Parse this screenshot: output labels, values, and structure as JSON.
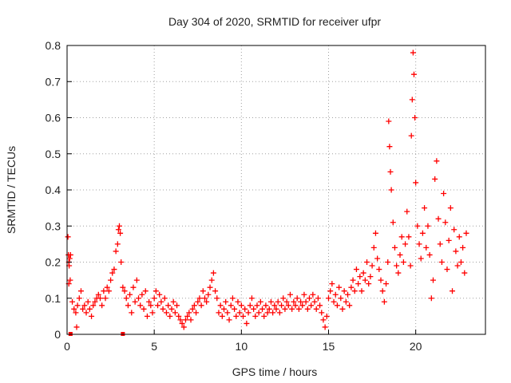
{
  "chart_data": {
    "type": "scatter",
    "title": "Day 304 of 2020, SRMTID for receiver ufpr",
    "xlabel": "GPS time / hours",
    "ylabel": "SRMTID / TECUs",
    "xlim": [
      0,
      24
    ],
    "ylim": [
      0,
      0.8
    ],
    "xticks": [
      0,
      5,
      10,
      15,
      20
    ],
    "yticks": [
      0,
      0.1,
      0.2,
      0.3,
      0.4,
      0.5,
      0.6,
      0.7,
      0.8
    ],
    "grid": true,
    "marker": "+",
    "color": "#ff0000",
    "series": [
      {
        "name": "ufpr",
        "points": [
          [
            0.05,
            0.27
          ],
          [
            0.08,
            0.22
          ],
          [
            0.1,
            0.2
          ],
          [
            0.12,
            0.19
          ],
          [
            0.15,
            0.21
          ],
          [
            0.18,
            0.15
          ],
          [
            0.2,
            0.22
          ],
          [
            0.1,
            0.14
          ],
          [
            0.3,
            0.09
          ],
          [
            0.4,
            0.07
          ],
          [
            0.5,
            0.06
          ],
          [
            0.55,
            0.02
          ],
          [
            0.6,
            0.08
          ],
          [
            0.7,
            0.1
          ],
          [
            0.8,
            0.12
          ],
          [
            0.9,
            0.07
          ],
          [
            1.0,
            0.08
          ],
          [
            1.1,
            0.06
          ],
          [
            1.2,
            0.09
          ],
          [
            1.3,
            0.07
          ],
          [
            1.4,
            0.05
          ],
          [
            1.5,
            0.08
          ],
          [
            1.6,
            0.09
          ],
          [
            1.7,
            0.1
          ],
          [
            1.8,
            0.11
          ],
          [
            1.9,
            0.1
          ],
          [
            2.0,
            0.08
          ],
          [
            2.1,
            0.12
          ],
          [
            2.2,
            0.1
          ],
          [
            2.3,
            0.13
          ],
          [
            2.4,
            0.12
          ],
          [
            2.5,
            0.15
          ],
          [
            2.6,
            0.17
          ],
          [
            2.7,
            0.18
          ],
          [
            2.8,
            0.23
          ],
          [
            2.9,
            0.25
          ],
          [
            2.95,
            0.29
          ],
          [
            3.0,
            0.3
          ],
          [
            3.05,
            0.28
          ],
          [
            3.1,
            0.2
          ],
          [
            3.2,
            0.13
          ],
          [
            3.3,
            0.12
          ],
          [
            3.4,
            0.1
          ],
          [
            3.5,
            0.08
          ],
          [
            3.6,
            0.11
          ],
          [
            3.7,
            0.06
          ],
          [
            3.8,
            0.13
          ],
          [
            3.9,
            0.09
          ],
          [
            4.0,
            0.15
          ],
          [
            4.1,
            0.1
          ],
          [
            4.2,
            0.08
          ],
          [
            4.3,
            0.11
          ],
          [
            4.4,
            0.07
          ],
          [
            4.5,
            0.12
          ],
          [
            4.6,
            0.05
          ],
          [
            4.7,
            0.09
          ],
          [
            4.8,
            0.08
          ],
          [
            4.9,
            0.06
          ],
          [
            5.0,
            0.1
          ],
          [
            5.1,
            0.12
          ],
          [
            5.2,
            0.08
          ],
          [
            5.3,
            0.11
          ],
          [
            5.4,
            0.09
          ],
          [
            5.5,
            0.07
          ],
          [
            5.6,
            0.1
          ],
          [
            5.7,
            0.06
          ],
          [
            5.8,
            0.08
          ],
          [
            5.9,
            0.05
          ],
          [
            6.0,
            0.07
          ],
          [
            6.1,
            0.09
          ],
          [
            6.2,
            0.06
          ],
          [
            6.3,
            0.08
          ],
          [
            6.4,
            0.05
          ],
          [
            6.5,
            0.04
          ],
          [
            6.6,
            0.03
          ],
          [
            6.7,
            0.02
          ],
          [
            6.8,
            0.04
          ],
          [
            6.9,
            0.05
          ],
          [
            7.0,
            0.06
          ],
          [
            7.1,
            0.04
          ],
          [
            7.2,
            0.07
          ],
          [
            7.3,
            0.08
          ],
          [
            7.4,
            0.06
          ],
          [
            7.5,
            0.09
          ],
          [
            7.6,
            0.1
          ],
          [
            7.7,
            0.08
          ],
          [
            7.8,
            0.12
          ],
          [
            7.9,
            0.1
          ],
          [
            8.0,
            0.09
          ],
          [
            8.1,
            0.11
          ],
          [
            8.2,
            0.13
          ],
          [
            8.3,
            0.15
          ],
          [
            8.4,
            0.17
          ],
          [
            8.5,
            0.12
          ],
          [
            8.6,
            0.1
          ],
          [
            8.7,
            0.06
          ],
          [
            8.8,
            0.08
          ],
          [
            8.9,
            0.05
          ],
          [
            9.0,
            0.07
          ],
          [
            9.1,
            0.09
          ],
          [
            9.2,
            0.06
          ],
          [
            9.3,
            0.04
          ],
          [
            9.4,
            0.08
          ],
          [
            9.5,
            0.1
          ],
          [
            9.6,
            0.07
          ],
          [
            9.7,
            0.05
          ],
          [
            9.8,
            0.09
          ],
          [
            9.9,
            0.06
          ],
          [
            10.0,
            0.08
          ],
          [
            10.1,
            0.05
          ],
          [
            10.2,
            0.07
          ],
          [
            10.3,
            0.03
          ],
          [
            10.4,
            0.06
          ],
          [
            10.5,
            0.08
          ],
          [
            10.6,
            0.1
          ],
          [
            10.7,
            0.07
          ],
          [
            10.8,
            0.05
          ],
          [
            10.9,
            0.08
          ],
          [
            11.0,
            0.06
          ],
          [
            11.1,
            0.09
          ],
          [
            11.2,
            0.07
          ],
          [
            11.3,
            0.05
          ],
          [
            11.4,
            0.08
          ],
          [
            11.5,
            0.06
          ],
          [
            11.6,
            0.07
          ],
          [
            11.7,
            0.09
          ],
          [
            11.8,
            0.06
          ],
          [
            11.9,
            0.08
          ],
          [
            12.0,
            0.07
          ],
          [
            12.1,
            0.09
          ],
          [
            12.2,
            0.06
          ],
          [
            12.3,
            0.08
          ],
          [
            12.4,
            0.1
          ],
          [
            12.5,
            0.07
          ],
          [
            12.6,
            0.09
          ],
          [
            12.7,
            0.08
          ],
          [
            12.8,
            0.11
          ],
          [
            12.9,
            0.07
          ],
          [
            13.0,
            0.09
          ],
          [
            13.1,
            0.08
          ],
          [
            13.2,
            0.1
          ],
          [
            13.3,
            0.07
          ],
          [
            13.4,
            0.09
          ],
          [
            13.5,
            0.08
          ],
          [
            13.6,
            0.11
          ],
          [
            13.7,
            0.09
          ],
          [
            13.8,
            0.07
          ],
          [
            13.9,
            0.1
          ],
          [
            14.0,
            0.08
          ],
          [
            14.1,
            0.11
          ],
          [
            14.2,
            0.09
          ],
          [
            14.3,
            0.07
          ],
          [
            14.4,
            0.1
          ],
          [
            14.5,
            0.08
          ],
          [
            14.6,
            0.06
          ],
          [
            14.7,
            0.04
          ],
          [
            14.8,
            0.02
          ],
          [
            14.9,
            0.05
          ],
          [
            15.0,
            0.1
          ],
          [
            15.1,
            0.12
          ],
          [
            15.2,
            0.14
          ],
          [
            15.3,
            0.09
          ],
          [
            15.4,
            0.11
          ],
          [
            15.5,
            0.08
          ],
          [
            15.6,
            0.13
          ],
          [
            15.7,
            0.1
          ],
          [
            15.8,
            0.07
          ],
          [
            15.9,
            0.12
          ],
          [
            16.0,
            0.09
          ],
          [
            16.1,
            0.11
          ],
          [
            16.2,
            0.08
          ],
          [
            16.3,
            0.13
          ],
          [
            16.4,
            0.15
          ],
          [
            16.5,
            0.12
          ],
          [
            16.6,
            0.18
          ],
          [
            16.7,
            0.14
          ],
          [
            16.8,
            0.16
          ],
          [
            16.9,
            0.12
          ],
          [
            17.0,
            0.17
          ],
          [
            17.1,
            0.15
          ],
          [
            17.2,
            0.2
          ],
          [
            17.3,
            0.14
          ],
          [
            17.4,
            0.16
          ],
          [
            17.5,
            0.19
          ],
          [
            17.6,
            0.24
          ],
          [
            17.7,
            0.28
          ],
          [
            17.8,
            0.21
          ],
          [
            17.9,
            0.18
          ],
          [
            18.0,
            0.15
          ],
          [
            18.1,
            0.12
          ],
          [
            18.2,
            0.09
          ],
          [
            18.3,
            0.14
          ],
          [
            18.4,
            0.2
          ],
          [
            18.45,
            0.59
          ],
          [
            18.5,
            0.52
          ],
          [
            18.55,
            0.45
          ],
          [
            18.6,
            0.4
          ],
          [
            18.7,
            0.31
          ],
          [
            18.8,
            0.24
          ],
          [
            18.9,
            0.19
          ],
          [
            19.0,
            0.17
          ],
          [
            19.1,
            0.22
          ],
          [
            19.2,
            0.27
          ],
          [
            19.3,
            0.2
          ],
          [
            19.4,
            0.25
          ],
          [
            19.5,
            0.34
          ],
          [
            19.6,
            0.27
          ],
          [
            19.7,
            0.19
          ],
          [
            19.75,
            0.55
          ],
          [
            19.8,
            0.65
          ],
          [
            19.85,
            0.78
          ],
          [
            19.9,
            0.72
          ],
          [
            19.95,
            0.6
          ],
          [
            20.0,
            0.42
          ],
          [
            20.1,
            0.3
          ],
          [
            20.2,
            0.25
          ],
          [
            20.3,
            0.21
          ],
          [
            20.4,
            0.28
          ],
          [
            20.5,
            0.35
          ],
          [
            20.6,
            0.24
          ],
          [
            20.7,
            0.3
          ],
          [
            20.8,
            0.22
          ],
          [
            20.9,
            0.1
          ],
          [
            21.0,
            0.15
          ],
          [
            21.1,
            0.43
          ],
          [
            21.2,
            0.48
          ],
          [
            21.3,
            0.32
          ],
          [
            21.4,
            0.25
          ],
          [
            21.5,
            0.2
          ],
          [
            21.6,
            0.39
          ],
          [
            21.7,
            0.31
          ],
          [
            21.8,
            0.18
          ],
          [
            21.9,
            0.26
          ],
          [
            22.0,
            0.35
          ],
          [
            22.1,
            0.12
          ],
          [
            22.2,
            0.29
          ],
          [
            22.3,
            0.23
          ],
          [
            22.4,
            0.19
          ],
          [
            22.5,
            0.27
          ],
          [
            22.6,
            0.2
          ],
          [
            22.7,
            0.24
          ],
          [
            22.8,
            0.17
          ],
          [
            22.9,
            0.28
          ]
        ]
      }
    ],
    "baseline_marks": [
      0.2,
      3.2
    ]
  }
}
